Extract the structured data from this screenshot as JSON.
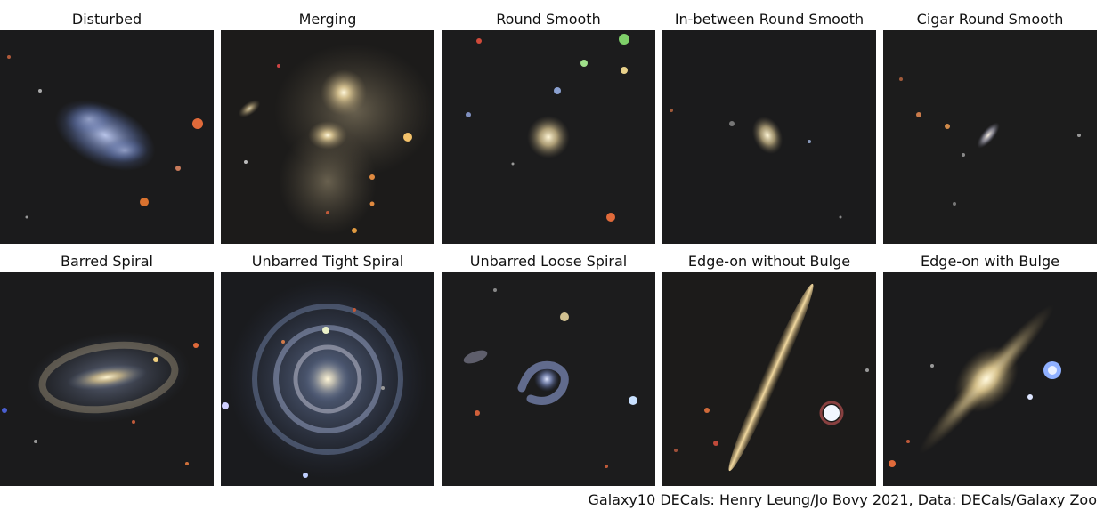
{
  "figure": {
    "title": "",
    "credit": "Galaxy10 DECals: Henry Leung/Jo Bovy 2021, Data: DECals/Galaxy Zoo"
  },
  "panels": [
    {
      "label": "Disturbed",
      "galaxy": "disturbed"
    },
    {
      "label": "Merging",
      "galaxy": "merging"
    },
    {
      "label": "Round Smooth",
      "galaxy": "round"
    },
    {
      "label": "In-between Round Smooth",
      "galaxy": "inbetween"
    },
    {
      "label": "Cigar Round Smooth",
      "galaxy": "cigar"
    },
    {
      "label": "Barred Spiral",
      "galaxy": "barred"
    },
    {
      "label": "Unbarred Tight Spiral",
      "galaxy": "tight"
    },
    {
      "label": "Unbarred Loose Spiral",
      "galaxy": "loose"
    },
    {
      "label": "Edge-on without Bulge",
      "galaxy": "edgeon"
    },
    {
      "label": "Edge-on with Bulge",
      "galaxy": "edgebulge"
    }
  ],
  "colors": {
    "sky": "#1b1b1c",
    "warm_core": "#fff2cc",
    "blue_arm": "#8fa6d8",
    "red_star": "#e06a3a"
  }
}
